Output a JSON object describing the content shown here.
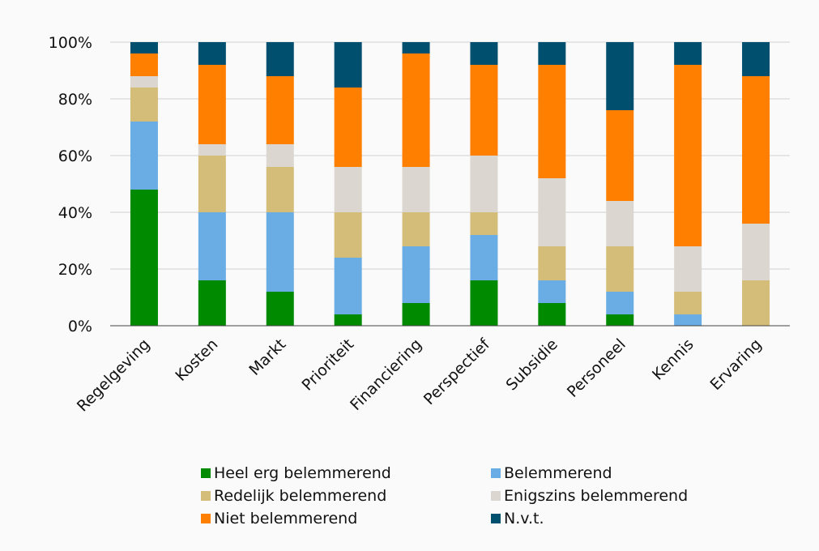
{
  "chart_data": {
    "type": "bar",
    "stacked": true,
    "categories": [
      "Regelgeving",
      "Kosten",
      "Markt",
      "Prioriteit",
      "Financiering",
      "Perspectief",
      "Subsidie",
      "Personeel",
      "Kennis",
      "Ervaring"
    ],
    "series": [
      {
        "name": "Heel erg belemmerend",
        "color": "#008a00",
        "values": [
          48,
          16,
          12,
          4,
          8,
          16,
          8,
          4,
          0,
          0
        ]
      },
      {
        "name": "Belemmerend",
        "color": "#6aade4",
        "values": [
          24,
          24,
          28,
          20,
          20,
          16,
          8,
          8,
          4,
          0
        ]
      },
      {
        "name": "Redelijk belemmerend",
        "color": "#d4bc79",
        "values": [
          12,
          20,
          16,
          16,
          12,
          8,
          12,
          16,
          8,
          16
        ]
      },
      {
        "name": "Enigszins belemmerend",
        "color": "#dbd7d0",
        "values": [
          4,
          4,
          8,
          16,
          16,
          20,
          24,
          16,
          16,
          20
        ]
      },
      {
        "name": "Niet belemmerend",
        "color": "#ff7f00",
        "values": [
          8,
          28,
          24,
          28,
          40,
          32,
          40,
          32,
          64,
          52
        ]
      },
      {
        "name": "N.v.t.",
        "color": "#004f6f",
        "values": [
          4,
          8,
          12,
          16,
          4,
          8,
          8,
          24,
          8,
          12
        ]
      }
    ],
    "yticks": [
      "0%",
      "20%",
      "40%",
      "60%",
      "80%",
      "100%"
    ],
    "ylim": [
      0,
      100
    ],
    "grid": true,
    "legend_position": "bottom"
  }
}
